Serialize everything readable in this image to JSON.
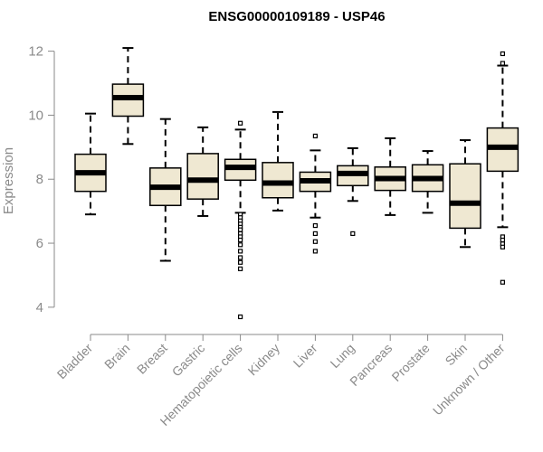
{
  "chart_data": {
    "type": "boxplot",
    "title": "ENSG00000109189 - USP46",
    "ylabel": "Expression",
    "xlabel": "",
    "ylim": [
      3.6,
      12.3
    ],
    "yticks": [
      4,
      6,
      8,
      10,
      12
    ],
    "box_fill": "#efe8d2",
    "box_stroke": "#000000",
    "categories": [
      {
        "name": "Bladder",
        "whisker_low": 6.9,
        "q1": 7.62,
        "median": 8.2,
        "q3": 8.78,
        "whisker_high": 10.05,
        "outliers": []
      },
      {
        "name": "Brain",
        "whisker_low": 9.1,
        "q1": 9.97,
        "median": 10.55,
        "q3": 10.97,
        "whisker_high": 12.1,
        "outliers": []
      },
      {
        "name": "Breast",
        "whisker_low": 5.45,
        "q1": 7.18,
        "median": 7.75,
        "q3": 8.35,
        "whisker_high": 9.88,
        "outliers": []
      },
      {
        "name": "Gastric",
        "whisker_low": 6.85,
        "q1": 7.38,
        "median": 7.97,
        "q3": 8.8,
        "whisker_high": 9.62,
        "outliers": []
      },
      {
        "name": "Hematopoietic cells",
        "whisker_low": 6.95,
        "q1": 7.97,
        "median": 8.37,
        "q3": 8.62,
        "whisker_high": 9.55,
        "outliers": [
          9.75,
          6.9,
          6.8,
          6.7,
          6.6,
          6.5,
          6.42,
          6.3,
          6.2,
          6.1,
          5.95,
          5.75,
          5.55,
          5.4,
          5.2,
          3.7
        ]
      },
      {
        "name": "Kidney",
        "whisker_low": 7.02,
        "q1": 7.42,
        "median": 7.88,
        "q3": 8.52,
        "whisker_high": 10.1,
        "outliers": []
      },
      {
        "name": "Liver",
        "whisker_low": 6.8,
        "q1": 7.62,
        "median": 7.95,
        "q3": 8.22,
        "whisker_high": 8.9,
        "outliers": [
          9.35,
          6.55,
          6.3,
          6.05,
          5.75
        ]
      },
      {
        "name": "Lung",
        "whisker_low": 7.32,
        "q1": 7.8,
        "median": 8.18,
        "q3": 8.42,
        "whisker_high": 8.97,
        "outliers": [
          6.3
        ]
      },
      {
        "name": "Pancreas",
        "whisker_low": 6.88,
        "q1": 7.65,
        "median": 8.02,
        "q3": 8.38,
        "whisker_high": 9.28,
        "outliers": []
      },
      {
        "name": "Prostate",
        "whisker_low": 6.95,
        "q1": 7.62,
        "median": 8.02,
        "q3": 8.45,
        "whisker_high": 8.88,
        "outliers": []
      },
      {
        "name": "Skin",
        "whisker_low": 5.88,
        "q1": 6.47,
        "median": 7.25,
        "q3": 8.48,
        "whisker_high": 9.22,
        "outliers": []
      },
      {
        "name": "Unknown / Other",
        "whisker_low": 6.5,
        "q1": 8.25,
        "median": 9.0,
        "q3": 9.6,
        "whisker_high": 11.55,
        "outliers": [
          11.92,
          11.62,
          6.2,
          6.1,
          5.98,
          5.88,
          4.78
        ]
      }
    ]
  }
}
